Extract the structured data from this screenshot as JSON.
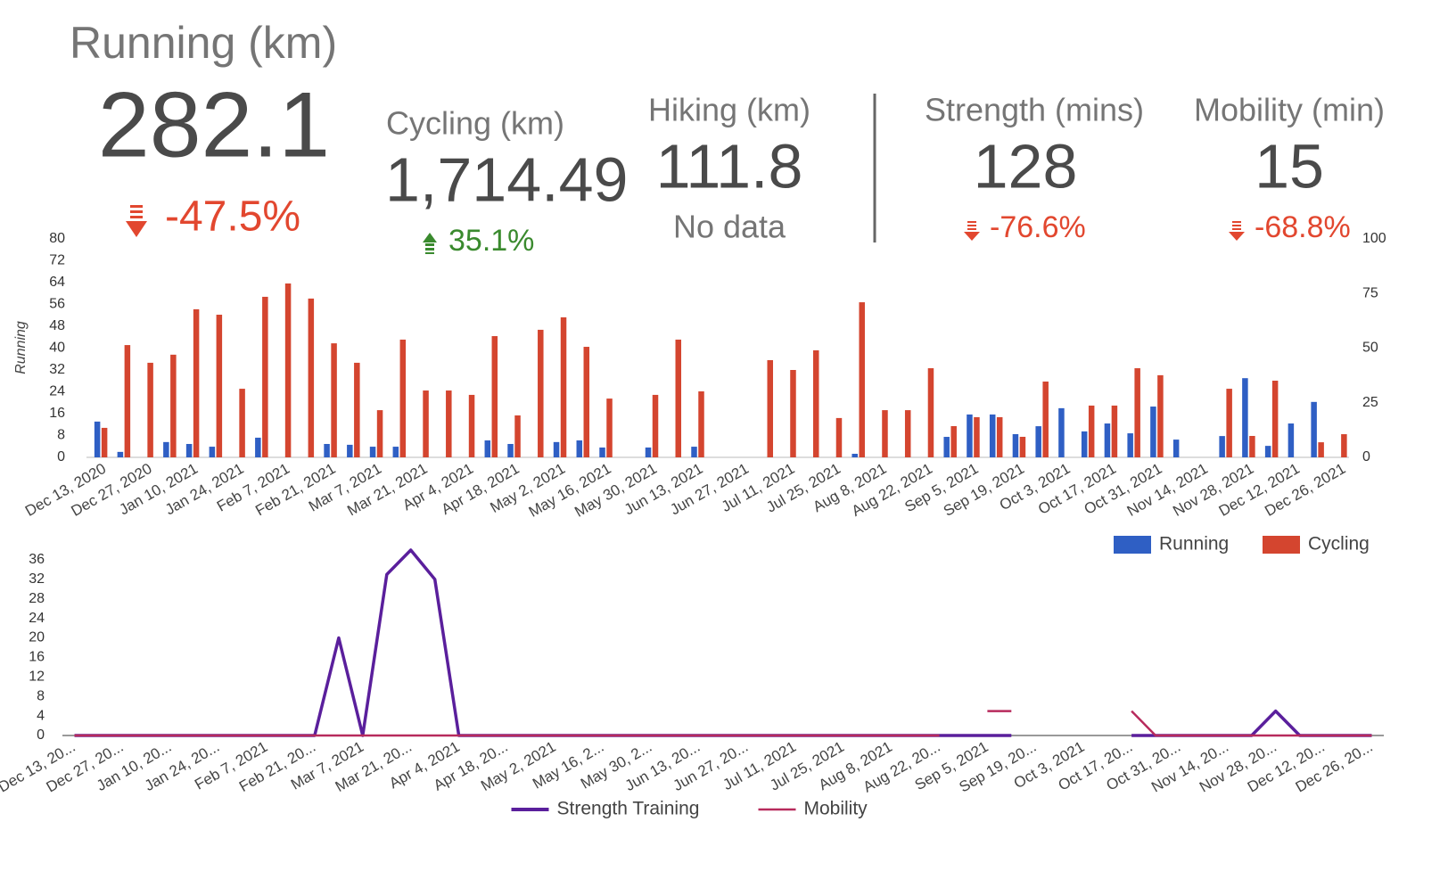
{
  "scorecards": [
    {
      "title": "Running (km)",
      "value": "282.1",
      "delta": "-47.5%"
    },
    {
      "title": "Cycling (km)",
      "value": "1,714.49",
      "delta": "35.1%"
    },
    {
      "title": "Hiking (km)",
      "value": "111.8",
      "delta": "No data"
    },
    {
      "title": "Strength (mins)",
      "value": "128",
      "delta": "-76.6%"
    },
    {
      "title": "Mobility (min)",
      "value": "15",
      "delta": "-68.8%"
    }
  ],
  "chart_data": [
    {
      "type": "bar",
      "y_label": "Running",
      "legend": "bottom-right",
      "categories": [
        "Dec 13, 2020",
        null,
        "Dec 27, 2020",
        null,
        "Jan 10, 2021",
        null,
        "Jan 24, 2021",
        null,
        "Feb 7, 2021",
        null,
        "Feb 21, 2021",
        null,
        "Mar 7, 2021",
        null,
        "Mar 21, 2021",
        null,
        "Apr 4, 2021",
        null,
        "Apr 18, 2021",
        null,
        "May 2, 2021",
        null,
        "May 16, 2021",
        null,
        "May 30, 2021",
        null,
        "Jun 13, 2021",
        null,
        "Jun 27, 2021",
        null,
        "Jul 11, 2021",
        null,
        "Jul 25, 2021",
        null,
        "Aug 8, 2021",
        null,
        "Aug 22, 2021",
        null,
        "Sep 5, 2021",
        null,
        "Sep 19, 2021",
        null,
        "Oct 3, 2021",
        null,
        "Oct 17, 2021",
        null,
        "Oct 31, 2021",
        null,
        "Nov 14, 2021",
        null,
        "Nov 28, 2021",
        null,
        "Dec 12, 2021",
        null,
        "Dec 26, 2021"
      ],
      "series": [
        {
          "name": "Running",
          "color": "#2f5fc4",
          "axis": "y",
          "values": [
            13.1,
            2,
            null,
            5.6,
            4.9,
            3.9,
            null,
            7.2,
            null,
            null,
            4.9,
            4.6,
            3.9,
            3.9,
            null,
            null,
            null,
            6.2,
            4.9,
            null,
            5.6,
            6.2,
            3.6,
            null,
            3.6,
            null,
            3.9,
            null,
            null,
            null,
            null,
            null,
            null,
            1.3,
            null,
            null,
            null,
            7.5,
            15.7,
            15.7,
            8.5,
            11.4,
            18,
            9.5,
            12.4,
            8.8,
            18.6,
            6.5,
            null,
            7.8,
            29,
            4.2,
            12.4,
            20.3,
            null
          ]
        },
        {
          "name": "Cycling",
          "color": "#d4452f",
          "axis": "y2",
          "values": [
            13.5,
            51.4,
            43.3,
            47,
            67.8,
            65.3,
            31.4,
            73.5,
            79.6,
            72.7,
            52.2,
            43.3,
            21.6,
            53.9,
            30.6,
            30.6,
            28.6,
            55.5,
            19.2,
            58.4,
            64.1,
            50.6,
            26.9,
            null,
            28.6,
            53.9,
            30.2,
            null,
            null,
            44.5,
            40,
            49,
            18,
            71,
            21.6,
            21.6,
            40.8,
            14.3,
            18.4,
            18.4,
            9.4,
            34.7,
            null,
            23.7,
            23.7,
            40.8,
            37.6,
            null,
            null,
            31.4,
            9.8,
            35.1,
            null,
            6.9,
            10.6
          ]
        }
      ],
      "ylim": [
        0,
        80
      ],
      "yticks": [
        0,
        8,
        16,
        24,
        32,
        40,
        48,
        56,
        64,
        72,
        80
      ],
      "y2lim": [
        0,
        100
      ],
      "y2ticks": [
        0,
        25,
        50,
        75,
        100
      ],
      "grid": false
    },
    {
      "type": "line",
      "legend": "bottom",
      "categories": [
        "Dec 13, 20...",
        null,
        "Dec 27, 20...",
        null,
        "Jan 10, 20...",
        null,
        "Jan 24, 20...",
        null,
        "Feb 7, 2021",
        null,
        "Feb 21, 20...",
        null,
        "Mar 7, 2021",
        null,
        "Mar 21, 20...",
        null,
        "Apr 4, 2021",
        null,
        "Apr 18, 20...",
        null,
        "May 2, 2021",
        null,
        "May 16, 2...",
        null,
        "May 30, 2...",
        null,
        "Jun 13, 20...",
        null,
        "Jun 27, 20...",
        null,
        "Jul 11, 2021",
        null,
        "Jul 25, 2021",
        null,
        "Aug 8, 2021",
        null,
        "Aug 22, 20...",
        null,
        "Sep 5, 2021",
        null,
        "Sep 19, 20...",
        null,
        "Oct 3, 2021",
        null,
        "Oct 17, 20...",
        null,
        "Oct 31, 20...",
        null,
        "Nov 14, 20...",
        null,
        "Nov 28, 20...",
        null,
        "Dec 12, 20...",
        null,
        "Dec 26, 20..."
      ],
      "series": [
        {
          "name": "Strength Training",
          "color": "#5a1f9c",
          "values": [
            0,
            0,
            0,
            0,
            0,
            0,
            0,
            0,
            0,
            0,
            0,
            20,
            0,
            33,
            38,
            32,
            0,
            0,
            0,
            0,
            0,
            0,
            0,
            0,
            0,
            0,
            0,
            0,
            0,
            0,
            0,
            0,
            0,
            0,
            0,
            0,
            0,
            0,
            0,
            0,
            null,
            null,
            null,
            null,
            0,
            0,
            0,
            0,
            0,
            0,
            5,
            0,
            0,
            0,
            0
          ]
        },
        {
          "name": "Mobility",
          "color": "#b72a5c",
          "values": [
            0,
            0,
            0,
            0,
            0,
            0,
            0,
            0,
            0,
            0,
            0,
            0,
            0,
            0,
            0,
            0,
            0,
            0,
            0,
            0,
            0,
            0,
            0,
            0,
            0,
            0,
            0,
            0,
            0,
            0,
            0,
            0,
            0,
            0,
            0,
            0,
            0,
            null,
            5,
            5,
            null,
            null,
            null,
            null,
            5,
            0,
            0,
            0,
            0,
            0,
            0,
            0,
            0,
            0,
            0
          ]
        }
      ],
      "ylim": [
        0,
        38
      ],
      "yticks": [
        0,
        4,
        8,
        12,
        16,
        20,
        24,
        28,
        32,
        36
      ],
      "grid": false
    }
  ]
}
